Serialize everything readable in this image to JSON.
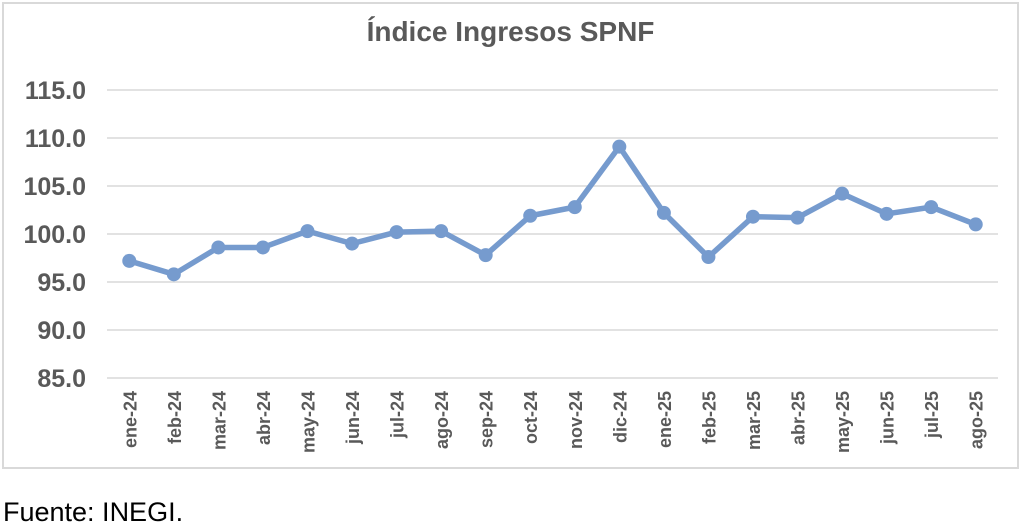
{
  "source_note": "Fuente: INEGI.",
  "chart_data": {
    "type": "line",
    "title": "Índice Ingresos SPNF",
    "categories": [
      "ene-24",
      "feb-24",
      "mar-24",
      "abr-24",
      "may-24",
      "jun-24",
      "jul-24",
      "ago-24",
      "sep-24",
      "oct-24",
      "nov-24",
      "dic-24",
      "ene-25",
      "feb-25",
      "mar-25",
      "abr-25",
      "may-25",
      "jun-25",
      "jul-25",
      "ago-25"
    ],
    "values": [
      97.2,
      95.8,
      98.6,
      98.6,
      100.3,
      99.0,
      100.2,
      100.3,
      97.8,
      101.9,
      102.8,
      109.1,
      102.2,
      97.6,
      101.8,
      101.7,
      104.2,
      102.1,
      102.8,
      101.0
    ],
    "series_name": "Índice Ingresos SPNF",
    "xlabel": "",
    "ylabel": "",
    "ylim": [
      85,
      115
    ],
    "ytick_step": 5,
    "ytick_labels": [
      "85.0",
      "90.0",
      "95.0",
      "100.0",
      "105.0",
      "110.0",
      "115.0"
    ],
    "grid": true,
    "legend_position": "none",
    "colors": {
      "line": "#769BCE",
      "marker": "#769BCE",
      "grid": "#D9D9D9",
      "axis_text": "#595959",
      "title_text": "#595959",
      "frame_border": "#D9D9D9",
      "background": "#FFFFFF",
      "source_text": "#000000"
    }
  }
}
